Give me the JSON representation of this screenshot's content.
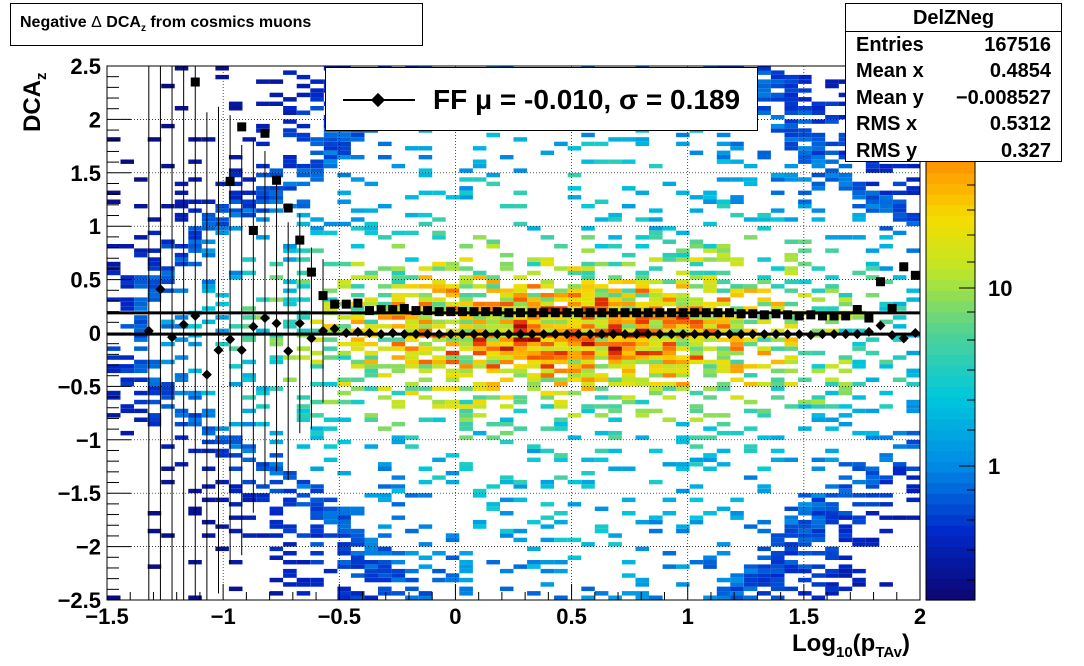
{
  "title": {
    "prefix": "Negative ",
    "delta": "Δ",
    "dca": " DCA",
    "sub": "z",
    "suffix": " from cosmics muons"
  },
  "stats": {
    "name": "DelZNeg",
    "rows": [
      {
        "k": "Entries",
        "v": "167516"
      },
      {
        "k": "Mean x",
        "v": "0.4854"
      },
      {
        "k": "Mean y",
        "v": "−0.008527"
      },
      {
        "k": "RMS x",
        "v": "0.5312"
      },
      {
        "k": "RMS y",
        "v": "0.327"
      }
    ]
  },
  "legend": {
    "text": "FF μ = -0.010, σ =   0.189"
  },
  "axes": {
    "ylabel_main": "DCA",
    "ylabel_sub": "z",
    "xlabel_main": "Log",
    "xlabel_sub1": "10",
    "xlabel_mid": "(p",
    "xlabel_sub2": "TAv",
    "xlabel_end": ")"
  },
  "colors": {
    "frame": "#000000",
    "marker": "#000000",
    "grid": "#000000"
  },
  "chart_data": {
    "type": "heatmap",
    "title": "Negative Δ DCAz from cosmics muons",
    "xlabel": "Log10(pTAv)",
    "ylabel": "DCAz",
    "xlim": [
      -1.5,
      2.0
    ],
    "ylim": [
      -2.5,
      2.5
    ],
    "x_ticks": [
      "−1.5",
      "−1",
      "−0.5",
      "0",
      "0.5",
      "1",
      "1.5",
      "2"
    ],
    "y_ticks": [
      "−2.5",
      "−2",
      "−1.5",
      "−1",
      "−0.5",
      "0",
      "0.5",
      "1",
      "1.5",
      "2",
      "2.5"
    ],
    "z_ticks": [
      "1",
      "10"
    ],
    "z_scale": "log",
    "grid": true,
    "fit_lines": [
      {
        "name": "mean",
        "y": -0.01
      },
      {
        "name": "sigma",
        "y": 0.189
      }
    ],
    "series": [
      {
        "name": "sigma",
        "marker": "square",
        "x": [
          -1.12,
          -0.97,
          -0.92,
          -0.87,
          -0.82,
          -0.77,
          -0.72,
          -0.67,
          -0.62,
          -0.57,
          -0.52,
          -0.47,
          -0.42,
          -0.37,
          -0.32,
          -0.27,
          -0.22,
          -0.17,
          -0.12,
          -0.07,
          -0.02,
          0.03,
          0.08,
          0.13,
          0.18,
          0.23,
          0.28,
          0.33,
          0.38,
          0.43,
          0.48,
          0.53,
          0.58,
          0.63,
          0.68,
          0.73,
          0.78,
          0.83,
          0.88,
          0.93,
          0.98,
          1.03,
          1.08,
          1.13,
          1.18,
          1.23,
          1.28,
          1.33,
          1.38,
          1.43,
          1.48,
          1.53,
          1.58,
          1.63,
          1.68,
          1.73,
          1.78,
          1.83,
          1.88,
          1.93,
          1.98
        ],
        "y": [
          2.35,
          1.42,
          1.93,
          0.96,
          1.87,
          1.43,
          1.17,
          0.87,
          0.57,
          0.35,
          0.27,
          0.27,
          0.28,
          0.21,
          0.22,
          0.22,
          0.23,
          0.21,
          0.21,
          0.2,
          0.2,
          0.2,
          0.2,
          0.2,
          0.2,
          0.19,
          0.19,
          0.19,
          0.19,
          0.19,
          0.19,
          0.19,
          0.19,
          0.19,
          0.19,
          0.19,
          0.19,
          0.19,
          0.19,
          0.19,
          0.19,
          0.19,
          0.19,
          0.19,
          0.19,
          0.18,
          0.18,
          0.17,
          0.18,
          0.17,
          0.16,
          0.17,
          0.16,
          0.16,
          0.16,
          0.22,
          0.14,
          0.48,
          0.23,
          0.62,
          0.54
        ]
      },
      {
        "name": "mean",
        "marker": "diamond",
        "x": [
          -1.32,
          -1.27,
          -1.22,
          -1.17,
          -1.12,
          -1.07,
          -1.02,
          -0.97,
          -0.92,
          -0.87,
          -0.82,
          -0.77,
          -0.72,
          -0.67,
          -0.62,
          -0.57,
          -0.52,
          -0.47,
          -0.42,
          -0.37,
          -0.32,
          -0.27,
          -0.22,
          -0.17,
          -0.12,
          -0.07,
          -0.02,
          0.03,
          0.08,
          0.13,
          0.18,
          0.23,
          0.28,
          0.33,
          0.38,
          0.43,
          0.48,
          0.53,
          0.58,
          0.63,
          0.68,
          0.73,
          0.78,
          0.83,
          0.88,
          0.93,
          0.98,
          1.03,
          1.08,
          1.13,
          1.18,
          1.23,
          1.28,
          1.33,
          1.38,
          1.43,
          1.48,
          1.53,
          1.58,
          1.63,
          1.68,
          1.73,
          1.78,
          1.83,
          1.88,
          1.93,
          1.98
        ],
        "y": [
          0.02,
          0.41,
          -0.04,
          0.08,
          0.16,
          -0.39,
          -0.16,
          -0.06,
          -0.16,
          0.06,
          0.14,
          0.09,
          -0.17,
          0.09,
          -0.05,
          0.02,
          0.04,
          0.0,
          0.01,
          0.0,
          -0.01,
          0.0,
          -0.01,
          -0.01,
          -0.01,
          -0.01,
          -0.01,
          -0.01,
          -0.01,
          -0.01,
          -0.01,
          -0.01,
          -0.01,
          -0.01,
          -0.01,
          -0.01,
          -0.01,
          -0.01,
          -0.01,
          -0.01,
          -0.01,
          -0.01,
          -0.01,
          -0.01,
          -0.01,
          -0.01,
          -0.01,
          -0.01,
          -0.01,
          -0.01,
          -0.01,
          -0.01,
          -0.01,
          -0.01,
          -0.01,
          -0.01,
          -0.01,
          -0.02,
          -0.01,
          -0.01,
          -0.01,
          -0.01,
          0.01,
          0.07,
          -0.02,
          -0.05,
          0.0
        ]
      }
    ]
  }
}
